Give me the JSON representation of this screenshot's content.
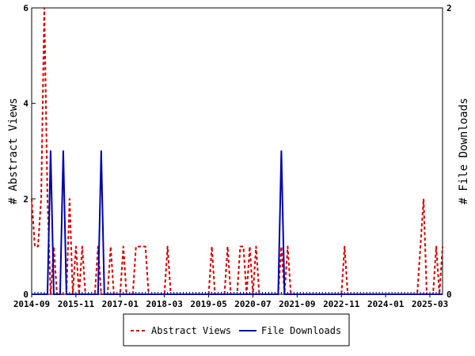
{
  "chart_data": {
    "type": "line",
    "x_tick_labels": [
      "2014-09",
      "2015-11",
      "2017-01",
      "2018-03",
      "2019-05",
      "2020-07",
      "2021-09",
      "2022-11",
      "2024-01",
      "2025-03"
    ],
    "x_range_months": [
      "2014-09",
      "2025-07"
    ],
    "y_left": {
      "label": "# Abstract Views",
      "range": [
        0,
        6
      ],
      "ticks": [
        "0",
        "2",
        "4",
        "6"
      ]
    },
    "y_right": {
      "label": "# File Downloads",
      "range": [
        0,
        2
      ],
      "ticks": [
        "0",
        "2"
      ]
    },
    "grid": false,
    "legend_position": "bottom",
    "series": [
      {
        "name": "Abstract Views",
        "axis": "left",
        "color": "#cc0000",
        "style": "dashed",
        "points": [
          {
            "x": "2014-09",
            "y": 2
          },
          {
            "x": "2014-10",
            "y": 1
          },
          {
            "x": "2014-11",
            "y": 1
          },
          {
            "x": "2014-12",
            "y": 2
          },
          {
            "x": "2015-01",
            "y": 6
          },
          {
            "x": "2015-02",
            "y": 2
          },
          {
            "x": "2015-03",
            "y": 0
          },
          {
            "x": "2015-04",
            "y": 1
          },
          {
            "x": "2015-05",
            "y": 0
          },
          {
            "x": "2015-06",
            "y": 0
          },
          {
            "x": "2015-07",
            "y": 0
          },
          {
            "x": "2015-08",
            "y": 0
          },
          {
            "x": "2015-09",
            "y": 2
          },
          {
            "x": "2015-10",
            "y": 0
          },
          {
            "x": "2015-11",
            "y": 1
          },
          {
            "x": "2015-12",
            "y": 0
          },
          {
            "x": "2016-01",
            "y": 1
          },
          {
            "x": "2016-02",
            "y": 0
          },
          {
            "x": "2016-03",
            "y": 0
          },
          {
            "x": "2016-04",
            "y": 0
          },
          {
            "x": "2016-05",
            "y": 0
          },
          {
            "x": "2016-06",
            "y": 1
          },
          {
            "x": "2016-07",
            "y": 0
          },
          {
            "x": "2016-08",
            "y": 0
          },
          {
            "x": "2016-09",
            "y": 0
          },
          {
            "x": "2016-10",
            "y": 1
          },
          {
            "x": "2016-11",
            "y": 0
          },
          {
            "x": "2016-12",
            "y": 0
          },
          {
            "x": "2017-01",
            "y": 0
          },
          {
            "x": "2017-02",
            "y": 1
          },
          {
            "x": "2017-03",
            "y": 0
          },
          {
            "x": "2017-04",
            "y": 0
          },
          {
            "x": "2017-05",
            "y": 0
          },
          {
            "x": "2017-06",
            "y": 1
          },
          {
            "x": "2017-07",
            "y": 1
          },
          {
            "x": "2017-08",
            "y": 1
          },
          {
            "x": "2017-09",
            "y": 1
          },
          {
            "x": "2017-10",
            "y": 0
          },
          {
            "x": "2017-11",
            "y": 0
          },
          {
            "x": "2017-12",
            "y": 0
          },
          {
            "x": "2018-01",
            "y": 0
          },
          {
            "x": "2018-02",
            "y": 0
          },
          {
            "x": "2018-03",
            "y": 0
          },
          {
            "x": "2018-04",
            "y": 1
          },
          {
            "x": "2018-05",
            "y": 0
          },
          {
            "x": "2019-05",
            "y": 0
          },
          {
            "x": "2019-06",
            "y": 1
          },
          {
            "x": "2019-07",
            "y": 0
          },
          {
            "x": "2019-10",
            "y": 0
          },
          {
            "x": "2019-11",
            "y": 1
          },
          {
            "x": "2019-12",
            "y": 0
          },
          {
            "x": "2020-02",
            "y": 0
          },
          {
            "x": "2020-03",
            "y": 1
          },
          {
            "x": "2020-04",
            "y": 1
          },
          {
            "x": "2020-05",
            "y": 0
          },
          {
            "x": "2020-06",
            "y": 1
          },
          {
            "x": "2020-07",
            "y": 0
          },
          {
            "x": "2020-08",
            "y": 1
          },
          {
            "x": "2020-09",
            "y": 0
          },
          {
            "x": "2021-03",
            "y": 0
          },
          {
            "x": "2021-04",
            "y": 1
          },
          {
            "x": "2021-05",
            "y": 0
          },
          {
            "x": "2021-06",
            "y": 1
          },
          {
            "x": "2021-07",
            "y": 0
          },
          {
            "x": "2022-11",
            "y": 0
          },
          {
            "x": "2022-12",
            "y": 1
          },
          {
            "x": "2023-01",
            "y": 0
          },
          {
            "x": "2024-11",
            "y": 0
          },
          {
            "x": "2025-01",
            "y": 2
          },
          {
            "x": "2025-02",
            "y": 0
          },
          {
            "x": "2025-04",
            "y": 0
          },
          {
            "x": "2025-05",
            "y": 1
          },
          {
            "x": "2025-06",
            "y": 0
          },
          {
            "x": "2025-07",
            "y": 1
          }
        ]
      },
      {
        "name": "File Downloads",
        "axis": "right",
        "color": "#0000aa",
        "style": "solid",
        "points": [
          {
            "x": "2014-09",
            "y": 0
          },
          {
            "x": "2015-02",
            "y": 0
          },
          {
            "x": "2015-03",
            "y": 1
          },
          {
            "x": "2015-04",
            "y": 0
          },
          {
            "x": "2015-06",
            "y": 0
          },
          {
            "x": "2015-07",
            "y": 1
          },
          {
            "x": "2015-08",
            "y": 0
          },
          {
            "x": "2016-06",
            "y": 0
          },
          {
            "x": "2016-07",
            "y": 1
          },
          {
            "x": "2016-08",
            "y": 0
          },
          {
            "x": "2021-03",
            "y": 0
          },
          {
            "x": "2021-04",
            "y": 1
          },
          {
            "x": "2021-05",
            "y": 0
          },
          {
            "x": "2025-07",
            "y": 0
          }
        ]
      }
    ]
  }
}
